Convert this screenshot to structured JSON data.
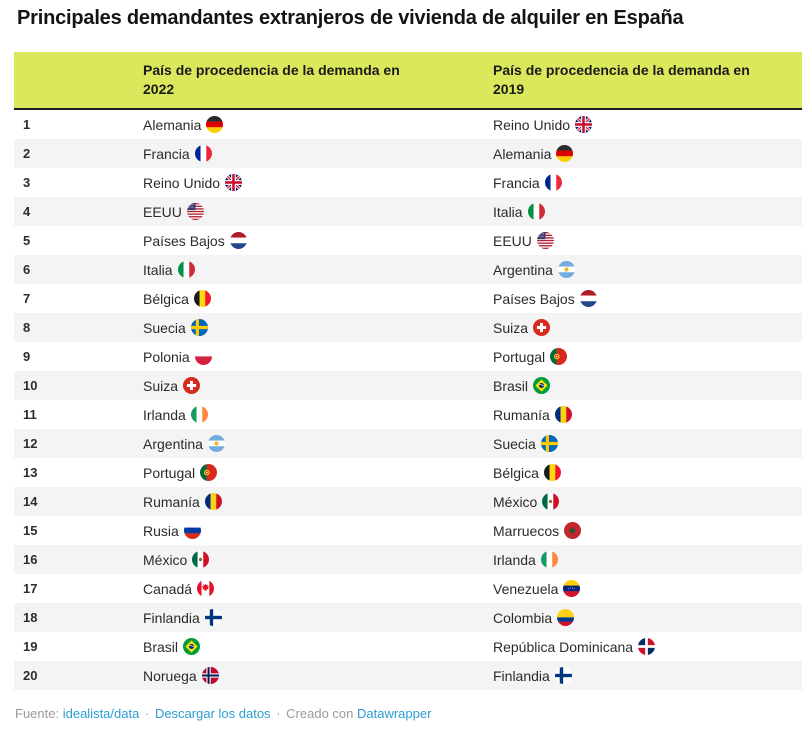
{
  "chart_data": {
    "type": "table",
    "title": "Principales demandantes extranjeros de vivienda de alquiler en España",
    "columns": [
      {
        "label": "País de procedencia de la demanda en 2022",
        "label_lines": [
          "País de procedencia de la demanda en",
          "2022"
        ]
      },
      {
        "label": "País de procedencia de la demanda en 2019",
        "label_lines": [
          "País de procedencia de la demanda en",
          "2019"
        ]
      }
    ],
    "rows": [
      {
        "rank": "1",
        "y2022": {
          "country": "Alemania",
          "flag": "germany"
        },
        "y2019": {
          "country": "Reino Unido",
          "flag": "united-kingdom"
        }
      },
      {
        "rank": "2",
        "y2022": {
          "country": "Francia",
          "flag": "france"
        },
        "y2019": {
          "country": "Alemania",
          "flag": "germany"
        }
      },
      {
        "rank": "3",
        "y2022": {
          "country": "Reino Unido",
          "flag": "united-kingdom"
        },
        "y2019": {
          "country": "Francia",
          "flag": "france"
        }
      },
      {
        "rank": "4",
        "y2022": {
          "country": "EEUU",
          "flag": "usa"
        },
        "y2019": {
          "country": "Italia",
          "flag": "italy"
        }
      },
      {
        "rank": "5",
        "y2022": {
          "country": "Países Bajos",
          "flag": "netherlands"
        },
        "y2019": {
          "country": "EEUU",
          "flag": "usa"
        }
      },
      {
        "rank": "6",
        "y2022": {
          "country": "Italia",
          "flag": "italy"
        },
        "y2019": {
          "country": "Argentina",
          "flag": "argentina"
        }
      },
      {
        "rank": "7",
        "y2022": {
          "country": "Bélgica",
          "flag": "belgium"
        },
        "y2019": {
          "country": "Países Bajos",
          "flag": "netherlands"
        }
      },
      {
        "rank": "8",
        "y2022": {
          "country": "Suecia",
          "flag": "sweden"
        },
        "y2019": {
          "country": "Suiza",
          "flag": "switzerland"
        }
      },
      {
        "rank": "9",
        "y2022": {
          "country": "Polonia",
          "flag": "poland"
        },
        "y2019": {
          "country": "Portugal",
          "flag": "portugal"
        }
      },
      {
        "rank": "10",
        "y2022": {
          "country": "Suiza",
          "flag": "switzerland"
        },
        "y2019": {
          "country": "Brasil",
          "flag": "brazil"
        }
      },
      {
        "rank": "11",
        "y2022": {
          "country": "Irlanda",
          "flag": "ireland"
        },
        "y2019": {
          "country": "Rumanía",
          "flag": "romania"
        }
      },
      {
        "rank": "12",
        "y2022": {
          "country": "Argentina",
          "flag": "argentina"
        },
        "y2019": {
          "country": "Suecia",
          "flag": "sweden"
        }
      },
      {
        "rank": "13",
        "y2022": {
          "country": "Portugal",
          "flag": "portugal"
        },
        "y2019": {
          "country": "Bélgica",
          "flag": "belgium"
        }
      },
      {
        "rank": "14",
        "y2022": {
          "country": "Rumanía",
          "flag": "romania"
        },
        "y2019": {
          "country": "México",
          "flag": "mexico"
        }
      },
      {
        "rank": "15",
        "y2022": {
          "country": "Rusia",
          "flag": "russia"
        },
        "y2019": {
          "country": "Marruecos",
          "flag": "morocco"
        }
      },
      {
        "rank": "16",
        "y2022": {
          "country": "México",
          "flag": "mexico"
        },
        "y2019": {
          "country": "Irlanda",
          "flag": "ireland"
        }
      },
      {
        "rank": "17",
        "y2022": {
          "country": "Canadá",
          "flag": "canada"
        },
        "y2019": {
          "country": "Venezuela",
          "flag": "venezuela"
        }
      },
      {
        "rank": "18",
        "y2022": {
          "country": "Finlandia",
          "flag": "finland"
        },
        "y2019": {
          "country": "Colombia",
          "flag": "colombia"
        }
      },
      {
        "rank": "19",
        "y2022": {
          "country": "Brasil",
          "flag": "brazil"
        },
        "y2019": {
          "country": "República Dominicana",
          "flag": "dominican-republic"
        }
      },
      {
        "rank": "20",
        "y2022": {
          "country": "Noruega",
          "flag": "norway"
        },
        "y2019": {
          "country": "Finlandia",
          "flag": "finland"
        }
      }
    ]
  },
  "footer": {
    "source_label": "Fuente:",
    "source_link": "idealista/data",
    "separator": "·",
    "download_link": "Descargar los datos",
    "created_label": "Creado con",
    "creator_link": "Datawrapper"
  },
  "colors": {
    "header_bg": "#dbe85c",
    "row_alt_bg": "#f4f4f4",
    "header_border": "#1c1c1c",
    "link": "#2d9dd2",
    "text": "#2b2b2b",
    "footer_text": "#9b9b9b"
  }
}
